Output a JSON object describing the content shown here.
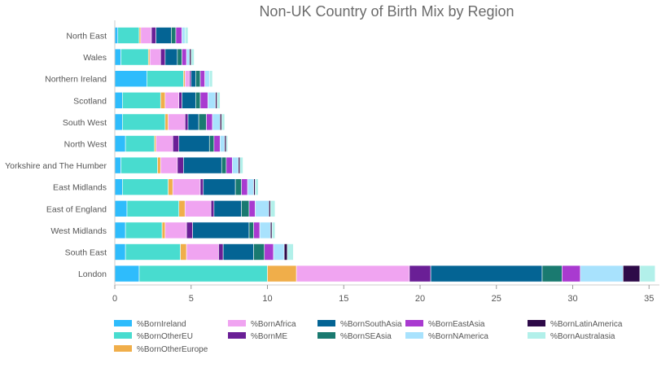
{
  "chart_data": {
    "type": "bar",
    "orientation": "horizontal",
    "stacked": true,
    "title": "Non-UK Country of Birth Mix by Region",
    "xlabel": "",
    "ylabel": "",
    "xlim": [
      0,
      36
    ],
    "xticks": [
      0,
      5,
      10,
      15,
      20,
      25,
      30,
      35
    ],
    "grid": false,
    "legend_position": "bottom",
    "categories": [
      "North East",
      "Wales",
      "Northern Ireland",
      "Scotland",
      "South West",
      "North West",
      "Yorkshire and The Humber",
      "East Midlands",
      "East of England",
      "West Midlands",
      "South East",
      "London"
    ],
    "series": [
      {
        "name": "%BornIreland",
        "color": "#2ebcfc",
        "values": [
          0.2,
          0.4,
          2.1,
          0.5,
          0.5,
          0.7,
          0.4,
          0.5,
          0.8,
          0.7,
          0.7,
          1.6
        ]
      },
      {
        "name": "%BornOtherEU",
        "color": "#48dccf",
        "values": [
          1.4,
          1.8,
          2.4,
          2.5,
          2.8,
          1.9,
          2.4,
          3.0,
          3.4,
          2.4,
          3.6,
          8.4
        ]
      },
      {
        "name": "%BornOtherEurope",
        "color": "#f0ae4a",
        "values": [
          0.1,
          0.1,
          0.1,
          0.3,
          0.2,
          0.1,
          0.2,
          0.3,
          0.4,
          0.2,
          0.4,
          1.9
        ]
      },
      {
        "name": "%BornAfrica",
        "color": "#f0a4f1",
        "values": [
          0.7,
          0.7,
          0.3,
          0.9,
          1.1,
          1.1,
          1.1,
          1.8,
          1.7,
          1.4,
          2.1,
          7.4
        ]
      },
      {
        "name": "%BornME",
        "color": "#6a1f96",
        "values": [
          0.3,
          0.3,
          0.1,
          0.2,
          0.2,
          0.4,
          0.4,
          0.2,
          0.2,
          0.4,
          0.3,
          1.4
        ]
      },
      {
        "name": "%BornSouthAsia",
        "color": "#046494",
        "values": [
          1.0,
          0.8,
          0.3,
          0.9,
          0.7,
          2.0,
          2.5,
          2.1,
          1.8,
          3.7,
          2.0,
          7.3
        ]
      },
      {
        "name": "%BornSEAsia",
        "color": "#1a7a70",
        "values": [
          0.3,
          0.3,
          0.3,
          0.3,
          0.5,
          0.3,
          0.3,
          0.4,
          0.5,
          0.3,
          0.7,
          1.3
        ]
      },
      {
        "name": "%BornEastAsia",
        "color": "#a93ad0",
        "values": [
          0.4,
          0.3,
          0.3,
          0.5,
          0.4,
          0.4,
          0.4,
          0.4,
          0.4,
          0.4,
          0.6,
          1.2
        ]
      },
      {
        "name": "%BornNAmerica",
        "color": "#a8e2fd",
        "values": [
          0.2,
          0.2,
          0.3,
          0.5,
          0.5,
          0.3,
          0.4,
          0.4,
          0.9,
          0.7,
          0.7,
          2.8
        ]
      },
      {
        "name": "%BornLatinAmerica",
        "color": "#2e0a48",
        "values": [
          0.0,
          0.1,
          0.0,
          0.1,
          0.1,
          0.1,
          0.1,
          0.1,
          0.1,
          0.1,
          0.2,
          1.1
        ]
      },
      {
        "name": "%BornAustralasia",
        "color": "#b2f0ea",
        "values": [
          0.2,
          0.2,
          0.2,
          0.2,
          0.2,
          0.1,
          0.2,
          0.2,
          0.3,
          0.2,
          0.4,
          1.0
        ]
      }
    ]
  }
}
